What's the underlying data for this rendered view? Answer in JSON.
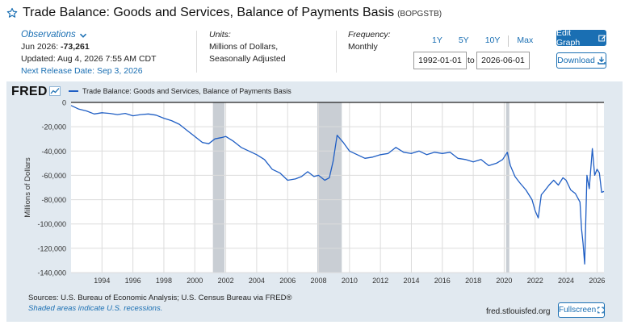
{
  "header": {
    "title": "Trade Balance: Goods and Services, Balance of Payments Basis",
    "series_id": "(BOPGSTB)"
  },
  "observations": {
    "label": "Observations",
    "date": "Jun 2026:",
    "value": "-73,261",
    "updated": "Updated: Aug 4, 2026 7:55 AM CDT",
    "next_release": "Next Release Date: Sep 3, 2026"
  },
  "units": {
    "label": "Units:",
    "line1": "Millions of Dollars,",
    "line2": "Seasonally Adjusted"
  },
  "frequency": {
    "label": "Frequency:",
    "value": "Monthly"
  },
  "range_buttons": [
    "1Y",
    "5Y",
    "10Y",
    "Max"
  ],
  "date_range": {
    "start": "1992-01-01",
    "to_label": "to",
    "end": "2026-06-01"
  },
  "buttons": {
    "edit_graph": "Edit Graph",
    "download": "Download",
    "fullscreen": "Fullscreen"
  },
  "logo": "FRED",
  "legend_label": "Trade Balance: Goods and Services, Balance of Payments Basis",
  "footer": {
    "sources": "Sources: U.S. Bureau of Economic Analysis; U.S. Census Bureau via FRED®",
    "note": "Shaded areas indicate U.S. recessions.",
    "site": "fred.stlouisfed.org"
  },
  "colors": {
    "line": "#1f5ec4",
    "accent": "#1a6fb3",
    "panel": "#e1e9f0",
    "recession": "#c9ced4"
  },
  "chart_data": {
    "type": "line",
    "ylabel": "Millions of Dollars",
    "ylim": [
      -140000,
      0
    ],
    "yticks": [
      0,
      -20000,
      -40000,
      -60000,
      -80000,
      -100000,
      -120000,
      -140000
    ],
    "ytick_labels": [
      "0",
      "-20,000",
      "-40,000",
      "-60,000",
      "-80,000",
      "-100,000",
      "-120,000",
      "-140,000"
    ],
    "xlim": [
      1992.0,
      2026.45
    ],
    "xticks": [
      1994,
      1996,
      1998,
      2000,
      2002,
      2004,
      2006,
      2008,
      2010,
      2012,
      2014,
      2016,
      2018,
      2020,
      2022,
      2024,
      2026
    ],
    "recessions": [
      [
        2001.17,
        2001.92
      ],
      [
        2007.92,
        2009.5
      ],
      [
        2020.12,
        2020.33
      ]
    ],
    "grid": true,
    "legend_position": "top-left",
    "series": [
      {
        "name": "Trade Balance: Goods and Services, Balance of Payments Basis",
        "x": [
          1992.0,
          1992.5,
          1993.0,
          1993.5,
          1994.0,
          1994.5,
          1995.0,
          1995.5,
          1996.0,
          1996.5,
          1997.0,
          1997.5,
          1998.0,
          1998.5,
          1999.0,
          1999.5,
          2000.0,
          2000.5,
          2000.9,
          2001.3,
          2001.7,
          2002.0,
          2002.5,
          2003.0,
          2003.5,
          2004.0,
          2004.5,
          2005.0,
          2005.5,
          2006.0,
          2006.5,
          2006.9,
          2007.3,
          2007.7,
          2008.0,
          2008.4,
          2008.7,
          2008.95,
          2009.2,
          2009.6,
          2010.0,
          2010.5,
          2011.0,
          2011.5,
          2012.0,
          2012.5,
          2013.0,
          2013.5,
          2014.0,
          2014.5,
          2015.0,
          2015.5,
          2016.0,
          2016.5,
          2017.0,
          2017.5,
          2018.0,
          2018.5,
          2019.0,
          2019.5,
          2019.9,
          2020.2,
          2020.4,
          2020.7,
          2021.0,
          2021.4,
          2021.8,
          2022.0,
          2022.2,
          2022.4,
          2022.6,
          2022.9,
          2023.2,
          2023.5,
          2023.8,
          2024.0,
          2024.3,
          2024.6,
          2024.9,
          2025.0,
          2025.1,
          2025.2,
          2025.35,
          2025.5,
          2025.7,
          2025.85,
          2026.0,
          2026.15,
          2026.3,
          2026.45
        ],
        "values": [
          -2500,
          -5500,
          -7000,
          -9500,
          -8500,
          -9000,
          -10000,
          -9000,
          -11000,
          -10000,
          -9500,
          -10500,
          -13000,
          -15000,
          -18000,
          -23000,
          -28000,
          -33000,
          -34000,
          -30000,
          -29000,
          -28000,
          -32000,
          -37000,
          -40000,
          -43000,
          -47000,
          -55000,
          -58000,
          -64000,
          -63000,
          -61000,
          -57000,
          -61000,
          -60000,
          -64000,
          -62000,
          -48000,
          -27000,
          -33000,
          -40000,
          -43000,
          -46000,
          -45000,
          -43000,
          -42000,
          -37000,
          -41000,
          -42000,
          -40000,
          -43000,
          -41000,
          -42000,
          -41000,
          -46000,
          -47000,
          -49000,
          -47000,
          -52000,
          -50000,
          -47000,
          -41000,
          -52000,
          -61000,
          -66000,
          -72000,
          -80000,
          -89000,
          -95000,
          -76000,
          -73000,
          -68000,
          -64000,
          -68000,
          -62000,
          -64000,
          -72000,
          -75000,
          -82000,
          -104000,
          -116000,
          -133000,
          -60000,
          -71000,
          -38000,
          -60000,
          -55000,
          -58000,
          -74000,
          -73261
        ]
      }
    ]
  }
}
